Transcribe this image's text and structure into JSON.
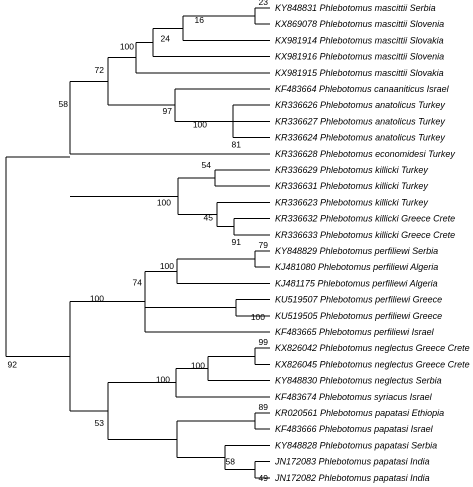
{
  "tree": {
    "taxa": [
      {
        "label": "KY848831 Phlebotomus mascittii Serbia"
      },
      {
        "label": "KX869078 Phlebotomus mascittii Slovenia"
      },
      {
        "label": "KX981914 Phlebotomus mascittii Slovakia"
      },
      {
        "label": "KX981916 Phlebotomus mascittii Slovenia"
      },
      {
        "label": "KX981915 Phlebotomus mascittii Slovakia"
      },
      {
        "label": "KF483664 Phlebotomus canaaniticus Israel"
      },
      {
        "label": "KR336626 Phlebotomus anatolicus Turkey"
      },
      {
        "label": "KR336627 Phlebotomus anatolicus Turkey"
      },
      {
        "label": "KR336624 Phlebotomus anatolicus Turkey"
      },
      {
        "label": "KR336628 Phlebotomus economidesi Turkey"
      },
      {
        "label": "KR336629 Phlebotomus killicki Turkey"
      },
      {
        "label": "KR336631 Phlebotomus killicki Turkey"
      },
      {
        "label": "KR336623 Phlebotomus killicki Turkey"
      },
      {
        "label": "KR336632 Phlebotomus killicki Greece Crete"
      },
      {
        "label": "KR336633 Phlebotomus killicki Greece Crete"
      },
      {
        "label": "KY848829 Phlebotomus perfiliewi Serbia"
      },
      {
        "label": "KJ481080 Phlebotomus perfiliewi Algeria"
      },
      {
        "label": "KJ481175 Phlebotomus perfiliewi Algeria"
      },
      {
        "label": "KU519507 Phlebotomus perfiliewi Greece"
      },
      {
        "label": "KU519505 Phlebotomus perfiliewi Greece"
      },
      {
        "label": "KF483665 Phlebotomus perfiliewi Israel"
      },
      {
        "label": "KX826042 Phlebotomus neglectus Greece Crete"
      },
      {
        "label": "KX826045 Phlebotomus neglectus Greece Crete"
      },
      {
        "label": "KY848830 Phlebotomus neglectus Serbia"
      },
      {
        "label": "KF483674 Phlebotomus syriacus Israel"
      },
      {
        "label": "KR020561 Phlebotomus papatasi Ethiopia"
      },
      {
        "label": "KF483666 Phlebotomus papatasi Israel"
      },
      {
        "label": "KY848828 Phlebotomus papatasi Serbia"
      },
      {
        "label": "JN172083 Phlebotomus papatasi India"
      },
      {
        "label": "JN172082 Phlebotomus papatasi India"
      }
    ],
    "supports": {
      "n23": "23",
      "n16": "16",
      "n24": "24",
      "n100a": "100",
      "n72": "72",
      "n97": "97",
      "n100b": "100",
      "n81": "81",
      "n58a": "58",
      "n54": "54",
      "n100c": "100",
      "n45": "45",
      "n91": "91",
      "n79": "79",
      "n100d": "100",
      "n74": "74",
      "n100e": "100",
      "n100f": "100",
      "n99": "99",
      "n100g": "100",
      "n89": "89",
      "n58b": "58",
      "n49": "49",
      "n100h": "100",
      "n53": "53",
      "n92": "92"
    }
  }
}
